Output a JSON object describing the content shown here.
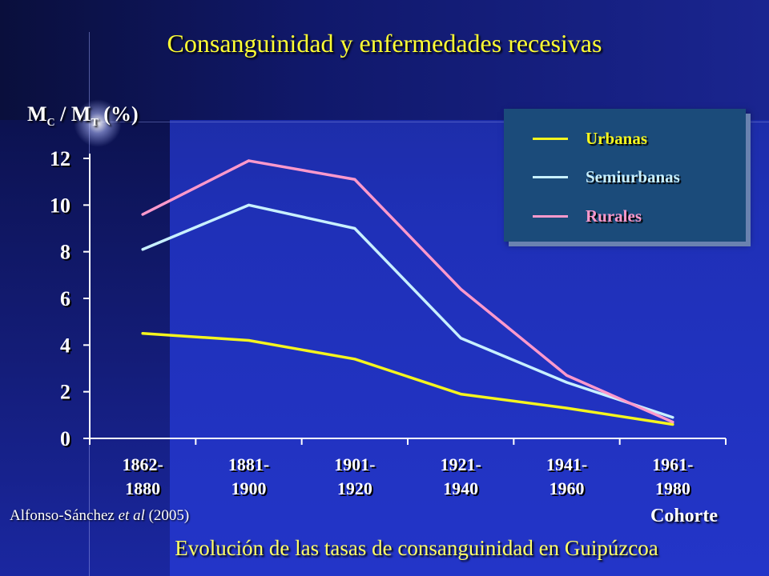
{
  "slide": {
    "title": "Consanguinidad y enfermedades recesivas",
    "subtitle": "Evolución de las tasas de consanguinidad en Guipúzcoa",
    "source_author": "Alfonso-Sánchez ",
    "source_etal": "et al",
    "source_year": " (2005)"
  },
  "chart_data": {
    "type": "line",
    "ylabel_main": "M",
    "ylabel_sub1": "C",
    "ylabel_mid": " / M",
    "ylabel_sub2": "T",
    "ylabel_unit": " (%)",
    "xlabel": "Cohorte",
    "ylim": [
      0,
      12
    ],
    "yticks": [
      0,
      2,
      4,
      6,
      8,
      10,
      12
    ],
    "categories": [
      [
        "1862-",
        "1880"
      ],
      [
        "1881-",
        "1900"
      ],
      [
        "1901-",
        "1920"
      ],
      [
        "1921-",
        "1940"
      ],
      [
        "1941-",
        "1960"
      ],
      [
        "1961-",
        "1980"
      ]
    ],
    "series": [
      {
        "name": "Urbanas",
        "color": "#f5f51e",
        "values": [
          4.5,
          4.2,
          3.4,
          1.9,
          1.3,
          0.6
        ]
      },
      {
        "name": "Semiurbanas",
        "color": "#c8f0ff",
        "values": [
          8.1,
          10.0,
          9.0,
          4.3,
          2.4,
          0.9
        ]
      },
      {
        "name": "Rurales",
        "color": "#ff99cc",
        "values": [
          9.6,
          11.9,
          11.1,
          6.4,
          2.7,
          0.7
        ]
      }
    ],
    "legend_position": "top-right",
    "grid": false
  }
}
